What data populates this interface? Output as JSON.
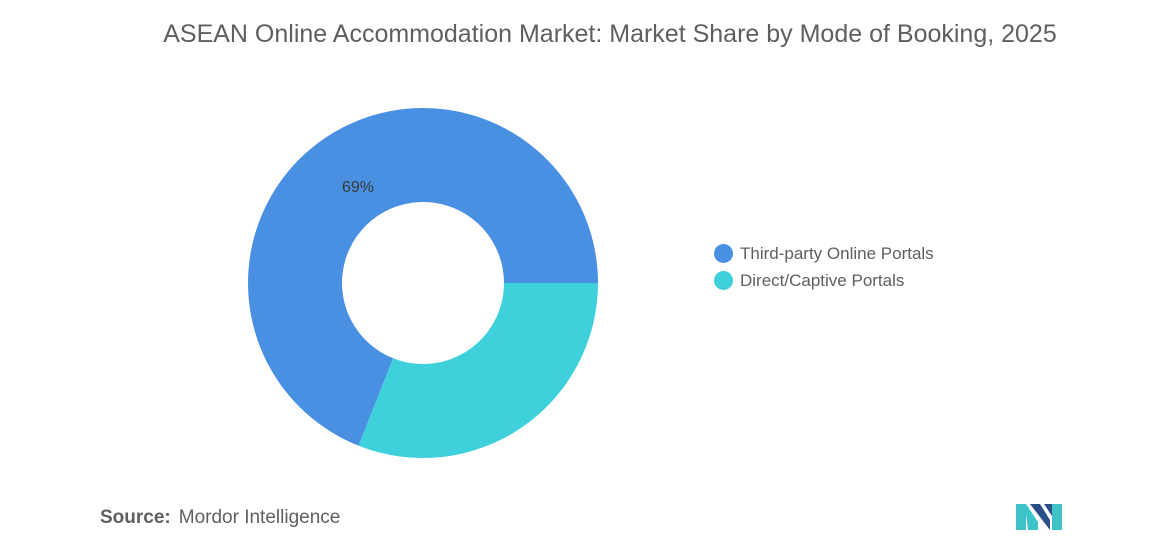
{
  "title": "ASEAN Online Accommodation Market: Market Share by Mode of Booking, 2025",
  "chart_data": {
    "type": "pie",
    "variant": "donut",
    "title": "ASEAN Online Accommodation Market: Market Share by Mode of Booking, 2025",
    "categories": [
      "Third-party Online Portals",
      "Direct/Captive Portals"
    ],
    "values": [
      69,
      31
    ],
    "colors": [
      "#4a90e2",
      "#3ed1dc"
    ],
    "data_labels": [
      "69%",
      ""
    ],
    "legend_position": "right"
  },
  "source": {
    "label": "Source:",
    "value": "Mordor Intelligence"
  },
  "logo": {
    "icon": "mordor-intelligence-logo-icon",
    "colors": [
      "#2a4f87",
      "#3ec3c9"
    ]
  }
}
